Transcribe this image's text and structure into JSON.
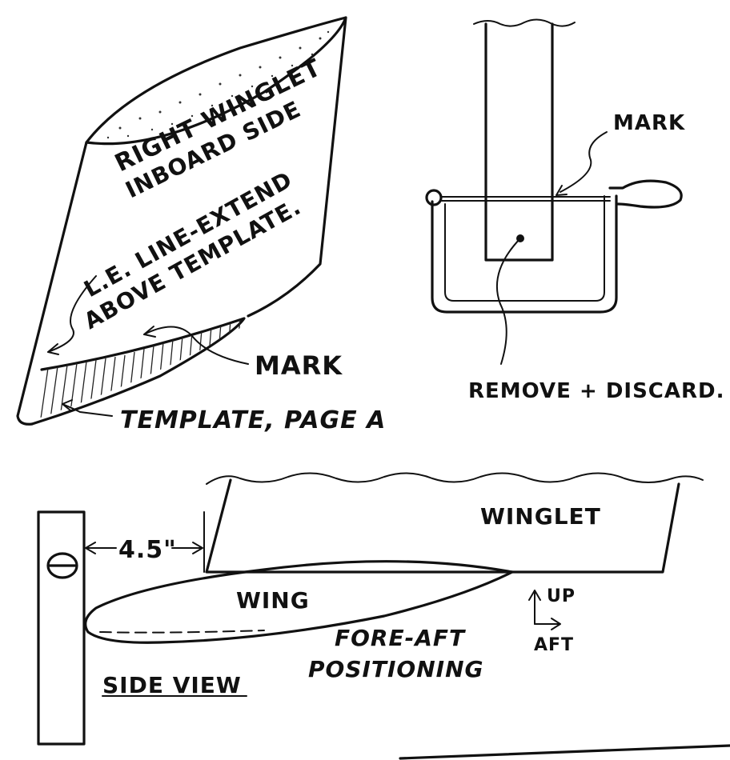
{
  "labels": {
    "winglet_title_line1": "RIGHT WINGLET",
    "winglet_title_line2": "INBOARD SIDE",
    "le_line_line1": "L.E. LINE-EXTEND",
    "le_line_line2": "ABOVE TEMPLATE.",
    "mark_left": "MARK",
    "template": "TEMPLATE, PAGE A",
    "mark_right": "MARK",
    "remove_discard": "REMOVE + DISCARD.",
    "winglet": "WINGLET",
    "dimension": "4.5\"",
    "wing": "WING",
    "fore_aft_line1": "FORE-AFT",
    "fore_aft_line2": "POSITIONING",
    "up": "UP",
    "aft": "AFT",
    "side_view": "SIDE VIEW"
  }
}
